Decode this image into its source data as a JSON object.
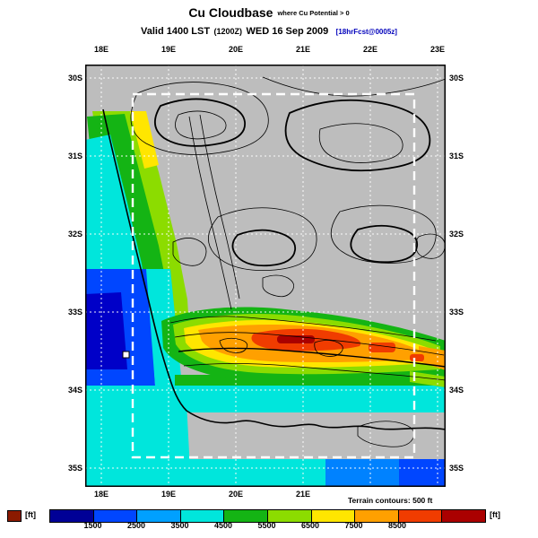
{
  "title": {
    "main": "Cu Cloudbase",
    "qualifier": "where Cu Potential > 0",
    "valid_prefix": "Valid 1400 LST",
    "valid_utc": "(1200Z)",
    "valid_rest": "WED 16 Sep 2009",
    "forecast_tag": "[18hrFcst@0005z]",
    "tag_color": "#0000bb"
  },
  "map": {
    "top_labels": [
      "18E",
      "19E",
      "20E",
      "21E",
      "22E",
      "23E"
    ],
    "bottom_labels": [
      "18E",
      "19E",
      "20E",
      "21E"
    ],
    "left_labels": [
      "30S",
      "31S",
      "32S",
      "33S",
      "34S",
      "35S"
    ],
    "right_labels": [
      "30S",
      "31S",
      "32S",
      "33S",
      "34S",
      "35S"
    ],
    "note": "Terrain contours: 500 ft"
  },
  "legend": {
    "unit_left": "[ft]",
    "unit_right": "[ft]",
    "ticks": [
      "1500",
      "2500",
      "3500",
      "4500",
      "5500",
      "6500",
      "7500",
      "8500"
    ],
    "colors": [
      "#000096",
      "#0046ff",
      "#00a0ff",
      "#00e6dc",
      "#14b414",
      "#8cdc00",
      "#ffe600",
      "#ffa000",
      "#f03c00",
      "#aa0000"
    ],
    "underrange_color": "#8b1a00"
  },
  "chart_data": {
    "type": "heatmap",
    "variable": "Cu Cloudbase where Cu Potential > 0",
    "units": "ft",
    "scale_ticks": [
      1500,
      2500,
      3500,
      4500,
      5500,
      6500,
      7500,
      8500
    ],
    "scale_colors": [
      "#000096",
      "#0046ff",
      "#00a0ff",
      "#00e6dc",
      "#14b414",
      "#8cdc00",
      "#ffe600",
      "#ffa000",
      "#f03c00",
      "#aa0000"
    ],
    "x_axis_labels": [
      "18E",
      "19E",
      "20E",
      "21E",
      "22E",
      "23E"
    ],
    "y_axis_labels": [
      "30S",
      "31S",
      "32S",
      "33S",
      "34S",
      "35S"
    ],
    "annotations": [
      "Terrain contours: 500 ft"
    ],
    "valid": "1400 LST (1200Z) WED 16 Sep 2009",
    "forecast": "18hrFcst@0005z"
  }
}
